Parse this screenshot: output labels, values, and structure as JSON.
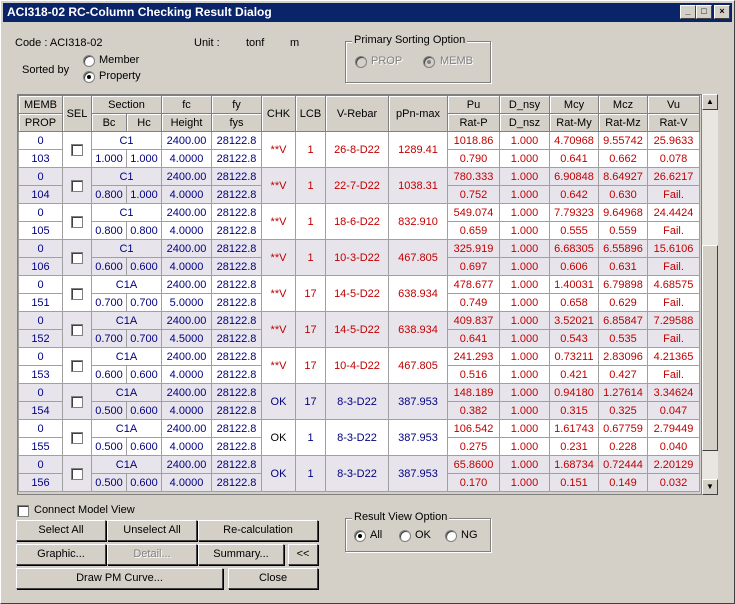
{
  "window": {
    "title": "ACI318-02 RC-Column Checking Result Dialog",
    "min": "_",
    "max": "□",
    "close": "×"
  },
  "info": {
    "code": "Code : ACI318-02",
    "unit_label": "Unit :",
    "unit_force": "tonf",
    "unit_length": "m"
  },
  "sorted_by": {
    "label": "Sorted by",
    "options": [
      "Member",
      "Property"
    ],
    "selected": "Property"
  },
  "primary_sort": {
    "title": "Primary Sorting Option",
    "options": [
      "PROP",
      "MEMB"
    ],
    "selected": "MEMB",
    "disabled": true
  },
  "table": {
    "headers": {
      "memb": "MEMB",
      "prop": "PROP",
      "sel": "SEL",
      "section": "Section",
      "bc": "Bc",
      "hc": "Hc",
      "fc": "fc",
      "height": "Height",
      "fy": "fy",
      "fys": "fys",
      "chk": "CHK",
      "lcb": "LCB",
      "vrebar": "V-Rebar",
      "ppn": "pPn-max",
      "pu": "Pu",
      "ratp": "Rat-P",
      "dnsy": "D_nsy",
      "dnsz": "D_nsz",
      "mcy": "Mcy",
      "ratmy": "Rat-My",
      "mcz": "Mcz",
      "ratmz": "Rat-Mz",
      "vu": "Vu",
      "ratv": "Rat-V"
    },
    "rows": [
      {
        "memb": "0",
        "prop": "103",
        "section": "C1",
        "bc": "1.000",
        "hc": "1.000",
        "fc": "2400.00",
        "height": "4.0000",
        "fy": "28122.8",
        "fys": "28122.8",
        "chk": "**V",
        "lcb": "1",
        "vrebar": "26-8-D22",
        "ppn": "1289.41",
        "pu": "1018.86",
        "ratp": "0.790",
        "dnsy": "1.000",
        "dnsz": "1.000",
        "mcy": "4.70968",
        "ratmy": "0.641",
        "mcz": "9.55742",
        "ratmz": "0.662",
        "vu": "25.9633",
        "ratv": "0.078"
      },
      {
        "memb": "0",
        "prop": "104",
        "section": "C1",
        "bc": "0.800",
        "hc": "1.000",
        "fc": "2400.00",
        "height": "4.0000",
        "fy": "28122.8",
        "fys": "28122.8",
        "chk": "**V",
        "lcb": "1",
        "vrebar": "22-7-D22",
        "ppn": "1038.31",
        "pu": "780.333",
        "ratp": "0.752",
        "dnsy": "1.000",
        "dnsz": "1.000",
        "mcy": "6.90848",
        "ratmy": "0.642",
        "mcz": "8.64927",
        "ratmz": "0.630",
        "vu": "26.6217",
        "ratv": "Fail."
      },
      {
        "memb": "0",
        "prop": "105",
        "section": "C1",
        "bc": "0.800",
        "hc": "0.800",
        "fc": "2400.00",
        "height": "4.0000",
        "fy": "28122.8",
        "fys": "28122.8",
        "chk": "**V",
        "lcb": "1",
        "vrebar": "18-6-D22",
        "ppn": "832.910",
        "pu": "549.074",
        "ratp": "0.659",
        "dnsy": "1.000",
        "dnsz": "1.000",
        "mcy": "7.79323",
        "ratmy": "0.555",
        "mcz": "9.64968",
        "ratmz": "0.559",
        "vu": "24.4424",
        "ratv": "Fail."
      },
      {
        "memb": "0",
        "prop": "106",
        "section": "C1",
        "bc": "0.600",
        "hc": "0.600",
        "fc": "2400.00",
        "height": "4.0000",
        "fy": "28122.8",
        "fys": "28122.8",
        "chk": "**V",
        "lcb": "1",
        "vrebar": "10-3-D22",
        "ppn": "467.805",
        "pu": "325.919",
        "ratp": "0.697",
        "dnsy": "1.000",
        "dnsz": "1.000",
        "mcy": "6.68305",
        "ratmy": "0.606",
        "mcz": "6.55896",
        "ratmz": "0.631",
        "vu": "15.6106",
        "ratv": "Fail."
      },
      {
        "memb": "0",
        "prop": "151",
        "section": "C1A",
        "bc": "0.700",
        "hc": "0.700",
        "fc": "2400.00",
        "height": "5.0000",
        "fy": "28122.8",
        "fys": "28122.8",
        "chk": "**V",
        "lcb": "17",
        "vrebar": "14-5-D22",
        "ppn": "638.934",
        "pu": "478.677",
        "ratp": "0.749",
        "dnsy": "1.000",
        "dnsz": "1.000",
        "mcy": "1.40031",
        "ratmy": "0.658",
        "mcz": "6.79898",
        "ratmz": "0.629",
        "vu": "4.68575",
        "ratv": "Fail."
      },
      {
        "memb": "0",
        "prop": "152",
        "section": "C1A",
        "bc": "0.700",
        "hc": "0.700",
        "fc": "2400.00",
        "height": "4.5000",
        "fy": "28122.8",
        "fys": "28122.8",
        "chk": "**V",
        "lcb": "17",
        "vrebar": "14-5-D22",
        "ppn": "638.934",
        "pu": "409.837",
        "ratp": "0.641",
        "dnsy": "1.000",
        "dnsz": "1.000",
        "mcy": "3.52021",
        "ratmy": "0.543",
        "mcz": "6.85847",
        "ratmz": "0.535",
        "vu": "7.29588",
        "ratv": "Fail."
      },
      {
        "memb": "0",
        "prop": "153",
        "section": "C1A",
        "bc": "0.600",
        "hc": "0.600",
        "fc": "2400.00",
        "height": "4.0000",
        "fy": "28122.8",
        "fys": "28122.8",
        "chk": "**V",
        "lcb": "17",
        "vrebar": "10-4-D22",
        "ppn": "467.805",
        "pu": "241.293",
        "ratp": "0.516",
        "dnsy": "1.000",
        "dnsz": "1.000",
        "mcy": "0.73211",
        "ratmy": "0.421",
        "mcz": "2.83096",
        "ratmz": "0.427",
        "vu": "4.21365",
        "ratv": "Fail."
      },
      {
        "memb": "0",
        "prop": "154",
        "section": "C1A",
        "bc": "0.500",
        "hc": "0.600",
        "fc": "2400.00",
        "height": "4.0000",
        "fy": "28122.8",
        "fys": "28122.8",
        "chk": "OK",
        "lcb": "17",
        "vrebar": "8-3-D22",
        "ppn": "387.953",
        "pu": "148.189",
        "ratp": "0.382",
        "dnsy": "1.000",
        "dnsz": "1.000",
        "mcy": "0.94180",
        "ratmy": "0.315",
        "mcz": "1.27614",
        "ratmz": "0.325",
        "vu": "3.34624",
        "ratv": "0.047"
      },
      {
        "memb": "0",
        "prop": "155",
        "section": "C1A",
        "bc": "0.500",
        "hc": "0.600",
        "fc": "2400.00",
        "height": "4.0000",
        "fy": "28122.8",
        "fys": "28122.8",
        "chk": "OK",
        "lcb": "1",
        "vrebar": "8-3-D22",
        "ppn": "387.953",
        "pu": "106.542",
        "ratp": "0.275",
        "dnsy": "1.000",
        "dnsz": "1.000",
        "mcy": "1.61743",
        "ratmy": "0.231",
        "mcz": "0.67759",
        "ratmz": "0.228",
        "vu": "2.79449",
        "ratv": "0.040"
      },
      {
        "memb": "0",
        "prop": "156",
        "section": "C1A",
        "bc": "0.500",
        "hc": "0.600",
        "fc": "2400.00",
        "height": "4.0000",
        "fy": "28122.8",
        "fys": "28122.8",
        "chk": "OK",
        "lcb": "1",
        "vrebar": "8-3-D22",
        "ppn": "387.953",
        "pu": "65.8600",
        "ratp": "0.170",
        "dnsy": "1.000",
        "dnsz": "1.000",
        "mcy": "1.68734",
        "ratmy": "0.151",
        "mcz": "0.72444",
        "ratmz": "0.149",
        "vu": "2.20129",
        "ratv": "0.032"
      }
    ]
  },
  "connect_model_view": "Connect Model View",
  "buttons": {
    "select_all": "Select All",
    "unselect_all": "Unselect All",
    "recalc": "Re-calculation",
    "graphic": "Graphic...",
    "detail": "Detail...",
    "summary": "Summary...",
    "collapse": "<<",
    "draw_pm": "Draw PM Curve...",
    "close": "Close"
  },
  "result_view": {
    "title": "Result View Option",
    "options": [
      "All",
      "OK",
      "NG"
    ],
    "selected": "All"
  },
  "colors": {
    "title_bg": "#0a246a",
    "red_text": "#c00000",
    "blue_text": "#000080",
    "alt_row": "#e8e4ec"
  }
}
